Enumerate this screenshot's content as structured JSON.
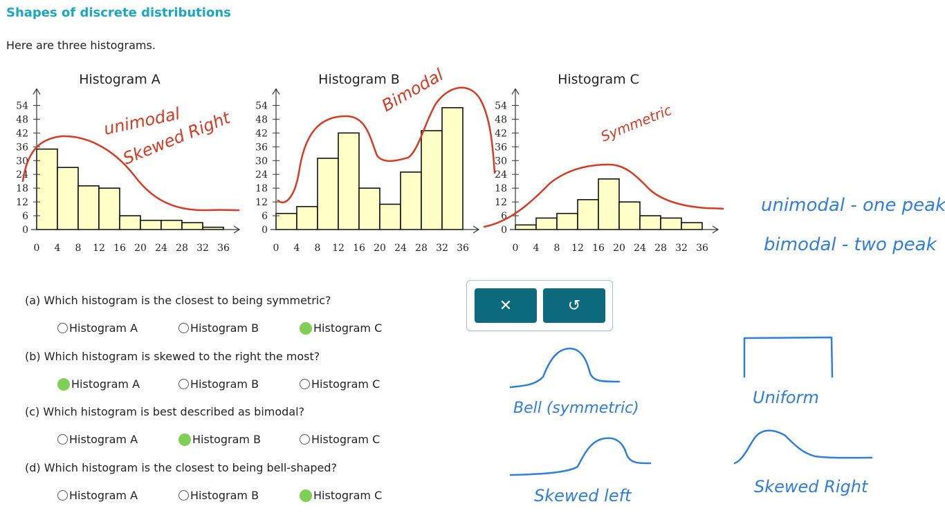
{
  "page": {
    "title": "Shapes of discrete distributions",
    "intro": "Here are three histograms."
  },
  "chart_data": [
    {
      "type": "bar",
      "title": "Histogram A",
      "x_ticks": [
        0,
        4,
        8,
        12,
        16,
        20,
        24,
        28,
        32,
        36
      ],
      "y_ticks": [
        0,
        6,
        12,
        18,
        24,
        30,
        36,
        42,
        48,
        54
      ],
      "bin_width": 4,
      "bins_start": [
        0,
        4,
        8,
        12,
        16,
        20,
        24,
        28,
        32
      ],
      "values": [
        35,
        27,
        19,
        18,
        6,
        4,
        4,
        3,
        1
      ],
      "fill": "#ffffc8"
    },
    {
      "type": "bar",
      "title": "Histogram B",
      "x_ticks": [
        0,
        4,
        8,
        12,
        16,
        20,
        24,
        28,
        32,
        36
      ],
      "y_ticks": [
        0,
        6,
        12,
        18,
        24,
        30,
        36,
        42,
        48,
        54
      ],
      "bin_width": 4,
      "bins_start": [
        0,
        4,
        8,
        12,
        16,
        20,
        24,
        28,
        32
      ],
      "values": [
        7,
        10,
        31,
        42,
        18,
        11,
        25,
        43,
        53
      ],
      "fill": "#ffffc8"
    },
    {
      "type": "bar",
      "title": "Histogram C",
      "x_ticks": [
        0,
        4,
        8,
        12,
        16,
        20,
        24,
        28,
        32,
        36
      ],
      "y_ticks": [
        0,
        6,
        12,
        18,
        24,
        30,
        36,
        42,
        48,
        54
      ],
      "bin_width": 4,
      "bins_start": [
        0,
        4,
        8,
        12,
        16,
        20,
        24,
        28,
        32
      ],
      "values": [
        2,
        5,
        7,
        13,
        22,
        12,
        6,
        5,
        3
      ],
      "fill": "#ffffc8"
    }
  ],
  "questions": [
    {
      "text": "(a) Which histogram is the closest to being symmetric?",
      "options": [
        "Histogram A",
        "Histogram B",
        "Histogram C"
      ],
      "selected": 2
    },
    {
      "text": "(b) Which histogram is skewed to the right the most?",
      "options": [
        "Histogram A",
        "Histogram B",
        "Histogram C"
      ],
      "selected": 0
    },
    {
      "text": "(c) Which histogram is best described as bimodal?",
      "options": [
        "Histogram A",
        "Histogram B",
        "Histogram C"
      ],
      "selected": 1
    },
    {
      "text": "(d) Which histogram is the closest to being bell-shaped?",
      "options": [
        "Histogram A",
        "Histogram B",
        "Histogram C"
      ],
      "selected": 2
    }
  ],
  "toolbox": {
    "clear_icon": "close-icon",
    "undo_icon": "undo-icon",
    "clear_glyph": "✕",
    "undo_glyph": "↺"
  },
  "annotations": {
    "a_line1": "unimodal",
    "a_line2": "Skewed Right",
    "b": "Bimodal",
    "c": "Symmetric",
    "def1": "unimodal - one peak",
    "def2": "bimodal - two peak",
    "bell": "Bell (symmetric)",
    "uniform": "Uniform",
    "skew_left": "Skewed left",
    "skew_right": "Skewed Right"
  },
  "colors": {
    "title": "#1aa7c4",
    "selected_radio": "#7fcf57",
    "toolbar_button": "#0d6a7e",
    "ink_red": "#d63a22",
    "ink_blue": "#2f7ddd"
  }
}
